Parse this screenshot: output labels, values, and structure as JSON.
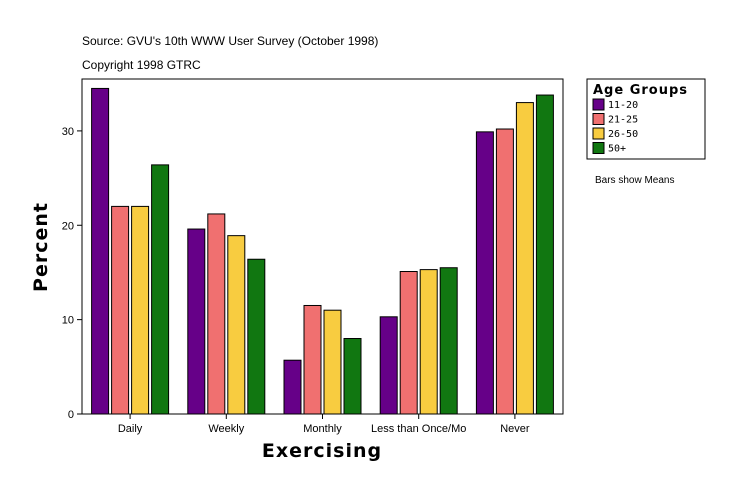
{
  "source": "Source: GVU's 10th WWW User Survey (October 1998)",
  "copyright": "Copyright 1998 GTRC",
  "note": "Bars show Means",
  "chart_data": {
    "type": "bar",
    "xlabel": "Exercising",
    "ylabel": "Percent",
    "ylim": [
      0,
      35.5
    ],
    "yticks": [
      0,
      10,
      20,
      30
    ],
    "legend_title": "Age Groups",
    "legend_position": "right",
    "categories": [
      "Daily",
      "Weekly",
      "Monthly",
      "Less than Once/Mo",
      "Never"
    ],
    "series": [
      {
        "name": "11-20",
        "color": "#660088",
        "values": [
          34.5,
          19.6,
          5.7,
          10.3,
          29.9
        ]
      },
      {
        "name": "21-25",
        "color": "#f07070",
        "values": [
          22.0,
          21.2,
          11.5,
          15.1,
          30.2
        ]
      },
      {
        "name": "26-50",
        "color": "#f8cc40",
        "values": [
          22.0,
          18.9,
          11.0,
          15.3,
          33.0
        ]
      },
      {
        "name": "50+",
        "color": "#117711",
        "values": [
          26.4,
          16.4,
          8.0,
          15.5,
          33.8
        ]
      }
    ]
  }
}
